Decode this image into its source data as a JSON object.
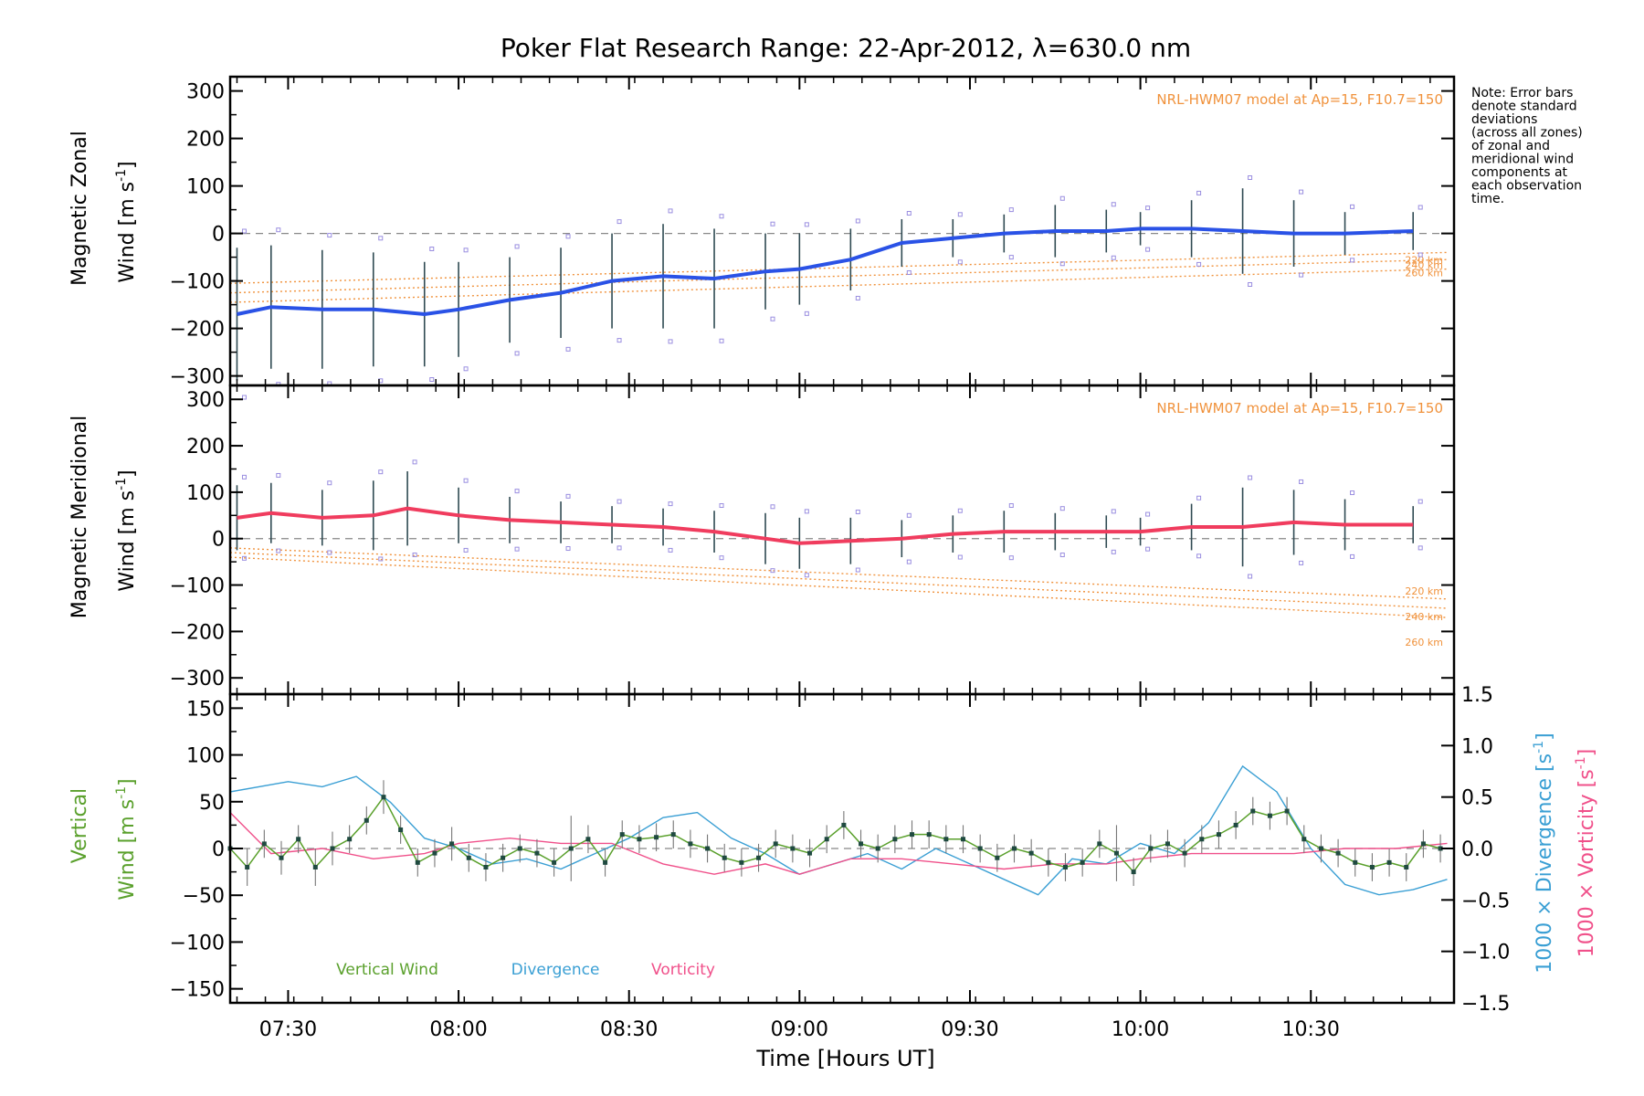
{
  "title": "Poker Flat Research Range: 22-Apr-2012, λ=630.0 nm",
  "note": [
    "Note: Error bars",
    "denote standard",
    "deviations",
    "(across all zones)",
    "of zonal and",
    "meridional wind",
    "components at",
    "each observation",
    "time."
  ],
  "colors": {
    "zonal": "#2a52e6",
    "meridional": "#f03c5e",
    "vertical": "#5aa02c",
    "divergence": "#3a9fd4",
    "vorticity": "#f0508a",
    "model": "#f0923c",
    "scatter": "#9a8ee0",
    "zero": "#888888"
  },
  "chart_data": [
    {
      "type": "line",
      "panel": "zonal",
      "ylabel": [
        "Magnetic Zonal",
        "Wind [m s",
        "-1",
        "]"
      ],
      "model_label": "NRL-HWM07 model at Ap=15, F10.7=150",
      "model_alt_labels": [
        "220 km",
        "240 km",
        "260 km"
      ],
      "ylim": [
        -320,
        330
      ],
      "yticks": [
        300,
        200,
        100,
        0,
        -100,
        -200,
        -300
      ],
      "yticklabels": [
        "300",
        "200",
        "100",
        "0",
        "−100",
        "−200",
        "−300"
      ],
      "grid": false,
      "series": [
        {
          "x": [
            7.35,
            7.45,
            7.6,
            7.75,
            7.9,
            8.0,
            8.15,
            8.3,
            8.45,
            8.6,
            8.75,
            8.9,
            9.0,
            9.15,
            9.3,
            9.45,
            9.6,
            9.75,
            9.9,
            10.0,
            10.15,
            10.3,
            10.45,
            10.6,
            10.8
          ],
          "values": [
            -170,
            -155,
            -160,
            -160,
            -170,
            -160,
            -140,
            -125,
            -100,
            -90,
            -95,
            -80,
            -75,
            -55,
            -20,
            -10,
            0,
            5,
            5,
            10,
            10,
            5,
            0,
            0,
            5
          ],
          "errors": [
            140,
            130,
            125,
            120,
            110,
            100,
            90,
            95,
            100,
            110,
            105,
            80,
            75,
            65,
            50,
            40,
            40,
            55,
            45,
            35,
            60,
            90,
            70,
            45,
            40
          ]
        }
      ],
      "model_curves": [
        {
          "name": "220 km",
          "x": [
            7.33,
            10.9
          ],
          "values": [
            -105,
            -40
          ]
        },
        {
          "name": "240 km",
          "x": [
            7.33,
            10.9
          ],
          "values": [
            -125,
            -55
          ]
        },
        {
          "name": "260 km",
          "x": [
            7.33,
            10.9
          ],
          "values": [
            -145,
            -75
          ]
        }
      ]
    },
    {
      "type": "line",
      "panel": "meridional",
      "ylabel": [
        "Magnetic Meridional",
        "Wind [m s",
        "-1",
        "]"
      ],
      "model_label": "NRL-HWM07 model at Ap=15, F10.7=150",
      "model_alt_labels": [
        "220 km",
        "240 km",
        "260 km"
      ],
      "ylim": [
        -335,
        330
      ],
      "yticks": [
        300,
        200,
        100,
        0,
        -100,
        -200,
        -300
      ],
      "yticklabels": [
        "300",
        "200",
        "100",
        "0",
        "−100",
        "−200",
        "−300"
      ],
      "grid": false,
      "series": [
        {
          "x": [
            7.35,
            7.45,
            7.6,
            7.75,
            7.85,
            8.0,
            8.15,
            8.3,
            8.45,
            8.6,
            8.75,
            8.9,
            9.0,
            9.15,
            9.3,
            9.45,
            9.6,
            9.75,
            9.9,
            10.0,
            10.15,
            10.3,
            10.45,
            10.6,
            10.8
          ],
          "values": [
            45,
            55,
            45,
            50,
            65,
            50,
            40,
            35,
            30,
            25,
            15,
            0,
            -10,
            -5,
            0,
            10,
            15,
            15,
            15,
            15,
            25,
            25,
            35,
            30,
            30
          ],
          "errors": [
            70,
            65,
            60,
            75,
            80,
            60,
            50,
            45,
            40,
            40,
            45,
            55,
            55,
            50,
            40,
            40,
            45,
            40,
            35,
            30,
            50,
            85,
            70,
            55,
            40
          ]
        }
      ],
      "model_curves": [
        {
          "name": "220 km",
          "x": [
            7.33,
            10.9
          ],
          "values": [
            -20,
            -130
          ]
        },
        {
          "name": "240 km",
          "x": [
            7.33,
            10.9
          ],
          "values": [
            -30,
            -150
          ]
        },
        {
          "name": "260 km",
          "x": [
            7.33,
            10.9
          ],
          "values": [
            -40,
            -170
          ]
        }
      ]
    },
    {
      "type": "line",
      "panel": "vertical",
      "ylabel": [
        "Vertical",
        "Wind [m s",
        "-1",
        "]"
      ],
      "ylabel_right_div": [
        "1000 × Divergence [s",
        "-1",
        "]"
      ],
      "ylabel_right_vort": [
        "1000 × Vorticity [s",
        "-1",
        "]"
      ],
      "ylim": [
        -165,
        165
      ],
      "yticks": [
        150,
        100,
        50,
        0,
        -50,
        -100,
        -150
      ],
      "yticklabels": [
        "150",
        "100",
        "50",
        "0",
        "−50",
        "−100",
        "−150"
      ],
      "y2lim": [
        -1.5,
        1.5
      ],
      "y2ticks": [
        1.5,
        1.0,
        0.5,
        0.0,
        -0.5,
        -1.0,
        -1.5
      ],
      "y2ticklabels": [
        "1.5",
        "1.0",
        "0.5",
        "0.0",
        "−0.5",
        "−1.0",
        "−1.5"
      ],
      "legend": [
        "Vertical Wind",
        "Divergence",
        "Vorticity"
      ],
      "grid": false,
      "series": [
        {
          "name": "Vertical Wind",
          "x": [
            7.33,
            7.38,
            7.43,
            7.48,
            7.53,
            7.58,
            7.63,
            7.68,
            7.73,
            7.78,
            7.83,
            7.88,
            7.93,
            7.98,
            8.03,
            8.08,
            8.13,
            8.18,
            8.23,
            8.28,
            8.33,
            8.38,
            8.43,
            8.48,
            8.53,
            8.58,
            8.63,
            8.68,
            8.73,
            8.78,
            8.83,
            8.88,
            8.93,
            8.98,
            9.03,
            9.08,
            9.13,
            9.18,
            9.23,
            9.28,
            9.33,
            9.38,
            9.43,
            9.48,
            9.53,
            9.58,
            9.63,
            9.68,
            9.73,
            9.78,
            9.83,
            9.88,
            9.93,
            9.98,
            10.03,
            10.08,
            10.13,
            10.18,
            10.23,
            10.28,
            10.33,
            10.38,
            10.43,
            10.48,
            10.53,
            10.58,
            10.63,
            10.68,
            10.73,
            10.78,
            10.83,
            10.88
          ],
          "values": [
            0,
            -20,
            5,
            -10,
            10,
            -20,
            0,
            10,
            30,
            55,
            20,
            -15,
            -5,
            5,
            -10,
            -20,
            -10,
            0,
            -5,
            -15,
            0,
            10,
            -15,
            15,
            10,
            12,
            15,
            5,
            0,
            -10,
            -15,
            -10,
            5,
            0,
            -5,
            10,
            25,
            5,
            0,
            10,
            15,
            15,
            10,
            10,
            0,
            -10,
            0,
            -5,
            -15,
            -20,
            -15,
            5,
            -5,
            -25,
            0,
            5,
            -5,
            10,
            15,
            25,
            40,
            35,
            40,
            10,
            0,
            -5,
            -15,
            -20,
            -15,
            -20,
            5,
            0
          ],
          "errors": [
            18,
            20,
            15,
            18,
            15,
            20,
            18,
            15,
            15,
            18,
            15,
            15,
            15,
            18,
            15,
            15,
            15,
            15,
            15,
            15,
            35,
            15,
            15,
            15,
            15,
            15,
            15,
            15,
            15,
            15,
            15,
            15,
            15,
            15,
            15,
            15,
            15,
            15,
            15,
            15,
            15,
            15,
            15,
            15,
            15,
            15,
            15,
            15,
            15,
            15,
            15,
            15,
            30,
            15,
            15,
            15,
            15,
            15,
            15,
            15,
            15,
            15,
            15,
            15,
            15,
            15,
            15,
            15,
            15,
            15,
            15,
            15
          ]
        },
        {
          "name": "Divergence",
          "x": [
            7.33,
            7.5,
            7.6,
            7.7,
            7.8,
            7.9,
            8.0,
            8.1,
            8.2,
            8.3,
            8.4,
            8.5,
            8.6,
            8.7,
            8.8,
            8.9,
            9.0,
            9.1,
            9.2,
            9.3,
            9.4,
            9.5,
            9.6,
            9.7,
            9.8,
            9.9,
            10.0,
            10.1,
            10.2,
            10.3,
            10.4,
            10.5,
            10.6,
            10.7,
            10.8,
            10.9
          ],
          "values": [
            0.55,
            0.65,
            0.6,
            0.7,
            0.45,
            0.1,
            0.0,
            -0.15,
            -0.1,
            -0.2,
            -0.05,
            0.1,
            0.3,
            0.35,
            0.1,
            -0.05,
            -0.25,
            -0.15,
            -0.05,
            -0.2,
            0.0,
            -0.15,
            -0.3,
            -0.45,
            -0.1,
            -0.15,
            0.05,
            -0.05,
            0.25,
            0.8,
            0.55,
            0.0,
            -0.35,
            -0.45,
            -0.4,
            -0.3
          ]
        },
        {
          "name": "Vorticity",
          "x": [
            7.33,
            7.45,
            7.6,
            7.75,
            7.9,
            8.0,
            8.15,
            8.3,
            8.45,
            8.6,
            8.75,
            8.9,
            9.0,
            9.15,
            9.3,
            9.45,
            9.6,
            9.75,
            9.9,
            10.0,
            10.15,
            10.3,
            10.45,
            10.6,
            10.75,
            10.9
          ],
          "values": [
            0.35,
            -0.05,
            0.0,
            -0.1,
            -0.05,
            0.05,
            0.1,
            0.05,
            0.05,
            -0.15,
            -0.25,
            -0.15,
            -0.25,
            -0.1,
            -0.1,
            -0.15,
            -0.2,
            -0.15,
            -0.15,
            -0.1,
            -0.05,
            -0.05,
            -0.05,
            0.0,
            0.0,
            0.05
          ]
        }
      ]
    }
  ],
  "xaxis": {
    "xlabel": "Time [Hours UT]",
    "xlim": [
      7.33,
      10.92
    ],
    "ticks": [
      7.5,
      8.0,
      8.5,
      9.0,
      9.5,
      10.0,
      10.5
    ],
    "ticklabels": [
      "07:30",
      "08:00",
      "08:30",
      "09:00",
      "09:30",
      "10:00",
      "10:30"
    ]
  }
}
